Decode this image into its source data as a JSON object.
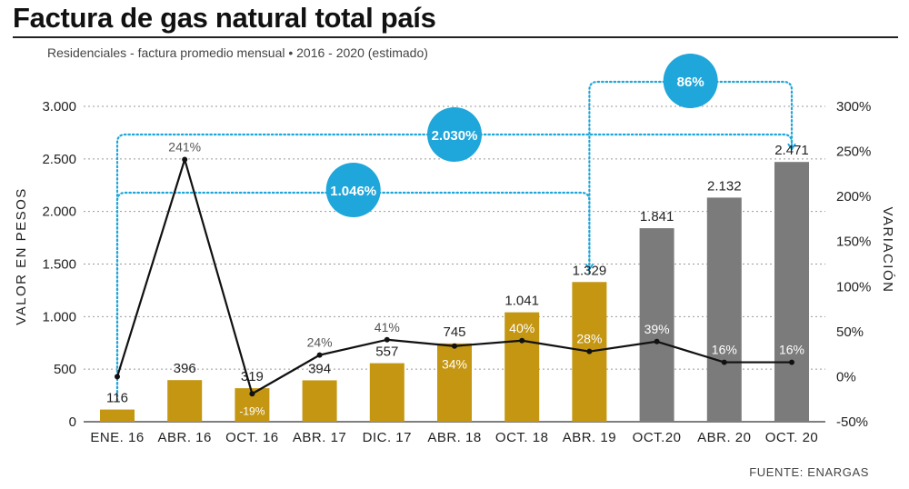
{
  "title": "Factura de gas natural total país",
  "subtitle": "Residenciales - factura promedio mensual • 2016 - 2020 (estimado)",
  "source": "FUENTE: ENARGAS",
  "colors": {
    "actual": "#C49612",
    "estimated": "#7B7B7B",
    "bubble": "#1FA6DA",
    "line": "#111111"
  },
  "chart_data": {
    "type": "bar",
    "categories": [
      "ENE. 16",
      "ABR. 16",
      "OCT. 16",
      "ABR. 17",
      "DIC. 17",
      "ABR. 18",
      "OCT. 18",
      "ABR. 19",
      "OCT.20",
      "ABR. 20",
      "OCT. 20"
    ],
    "values": [
      116,
      396,
      319,
      394,
      557,
      745,
      1041,
      1329,
      1841,
      2132,
      2471
    ],
    "value_labels": [
      "116",
      "396",
      "319",
      "394",
      "557",
      "745",
      "1.041",
      "1.329",
      "1.841",
      "2.132",
      "2.471"
    ],
    "estimated": [
      false,
      false,
      false,
      false,
      false,
      false,
      false,
      false,
      true,
      true,
      true
    ],
    "ylabel": "VALOR EN PESOS",
    "ylim": [
      0,
      3000
    ],
    "yticks": [
      {
        "value": 0,
        "label": "0"
      },
      {
        "value": 500,
        "label": "500"
      },
      {
        "value": 1000,
        "label": "1.000"
      },
      {
        "value": 1500,
        "label": "1.500"
      },
      {
        "value": 2000,
        "label": "2.000"
      },
      {
        "value": 2500,
        "label": "2.500"
      },
      {
        "value": 3000,
        "label": "3.000"
      }
    ],
    "y2label": "VARIACIÓN",
    "y2lim": [
      -50,
      300
    ],
    "y2ticks": [
      {
        "value": -50,
        "label": "-50%"
      },
      {
        "value": 0,
        "label": "0%"
      },
      {
        "value": 50,
        "label": "50%"
      },
      {
        "value": 100,
        "label": "100%"
      },
      {
        "value": 150,
        "label": "150%"
      },
      {
        "value": 200,
        "label": "200%"
      },
      {
        "value": 250,
        "label": "250%"
      },
      {
        "value": 300,
        "label": "300%"
      }
    ],
    "variation": [
      0,
      241,
      -19,
      24,
      41,
      34,
      40,
      28,
      39,
      16,
      16
    ],
    "variation_labels": [
      "",
      "241%",
      "-19%",
      "24%",
      "41%",
      "34%",
      "40%",
      "28%",
      "39%",
      "16%",
      "16%"
    ],
    "grid": true,
    "brackets": [
      {
        "label": "2.030%",
        "from": 0,
        "to": 10
      },
      {
        "label": "1.046%",
        "from": 0,
        "to": 7
      },
      {
        "label": "86%",
        "from": 7,
        "to": 10
      }
    ]
  }
}
